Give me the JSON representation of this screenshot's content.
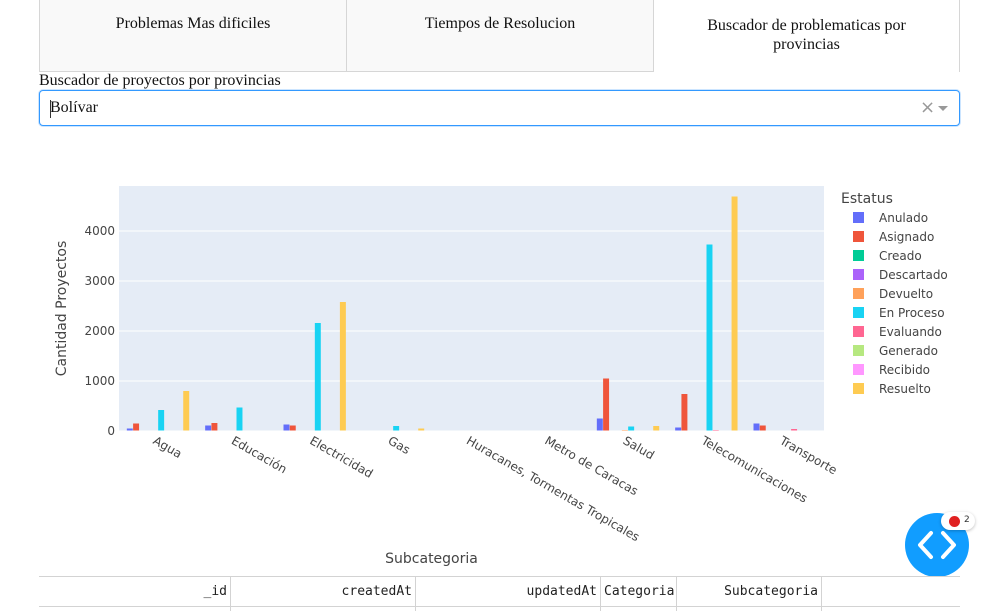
{
  "tabs": [
    {
      "label": "Problemas Mas dificiles"
    },
    {
      "label": "Tiempos de Resolucion"
    },
    {
      "label": "Buscador de problematicas por provincias"
    }
  ],
  "dropdown": {
    "label": "Buscador de proyectos por provincias",
    "value": "Bolívar",
    "clear_symbol": "×"
  },
  "chart_data": {
    "type": "bar",
    "title": "",
    "xlabel": "Subcategoria",
    "ylabel": "Cantidad Proyectos",
    "ylim": [
      0,
      4900
    ],
    "yticks": [
      0,
      1000,
      2000,
      3000,
      4000
    ],
    "legend_title": "Estatus",
    "legend_position": "right",
    "categories": [
      "Agua",
      "Educación",
      "Electricidad",
      "Gas",
      "Huracanes, Tormentas Tropicales",
      "Metro de Caracas",
      "Salud",
      "Telecomunicaciones",
      "Transporte"
    ],
    "series": [
      {
        "name": "Anulado",
        "color": "#636efa",
        "values": [
          50,
          110,
          130,
          0,
          0,
          0,
          250,
          70,
          150
        ]
      },
      {
        "name": "Asignado",
        "color": "#ef553b",
        "values": [
          150,
          160,
          110,
          0,
          0,
          5,
          1050,
          740,
          110
        ]
      },
      {
        "name": "Creado",
        "color": "#00cc96",
        "values": [
          0,
          0,
          0,
          0,
          0,
          0,
          0,
          0,
          0
        ]
      },
      {
        "name": "Descartado",
        "color": "#ab63fa",
        "values": [
          0,
          0,
          0,
          0,
          0,
          0,
          0,
          0,
          0
        ]
      },
      {
        "name": "Devuelto",
        "color": "#ffa15a",
        "values": [
          5,
          5,
          5,
          0,
          0,
          0,
          20,
          10,
          10
        ]
      },
      {
        "name": "En Proceso",
        "color": "#19d3f3",
        "values": [
          420,
          470,
          2160,
          100,
          0,
          0,
          90,
          3730,
          0
        ]
      },
      {
        "name": "Evaluando",
        "color": "#ff6692",
        "values": [
          5,
          5,
          5,
          0,
          0,
          0,
          5,
          20,
          40
        ]
      },
      {
        "name": "Generado",
        "color": "#b6e880",
        "values": [
          0,
          0,
          0,
          0,
          0,
          0,
          0,
          0,
          0
        ]
      },
      {
        "name": "Recibido",
        "color": "#ff97ff",
        "values": [
          0,
          0,
          0,
          0,
          0,
          0,
          0,
          0,
          10
        ]
      },
      {
        "name": "Resuelto",
        "color": "#fecb52",
        "values": [
          800,
          0,
          2580,
          50,
          0,
          0,
          100,
          4690,
          0
        ]
      }
    ]
  },
  "fab": {
    "badge_count": "2"
  },
  "table": {
    "columns": [
      "_id",
      "createdAt",
      "updatedAt",
      "Categoria",
      "Subcategoria",
      ""
    ]
  }
}
